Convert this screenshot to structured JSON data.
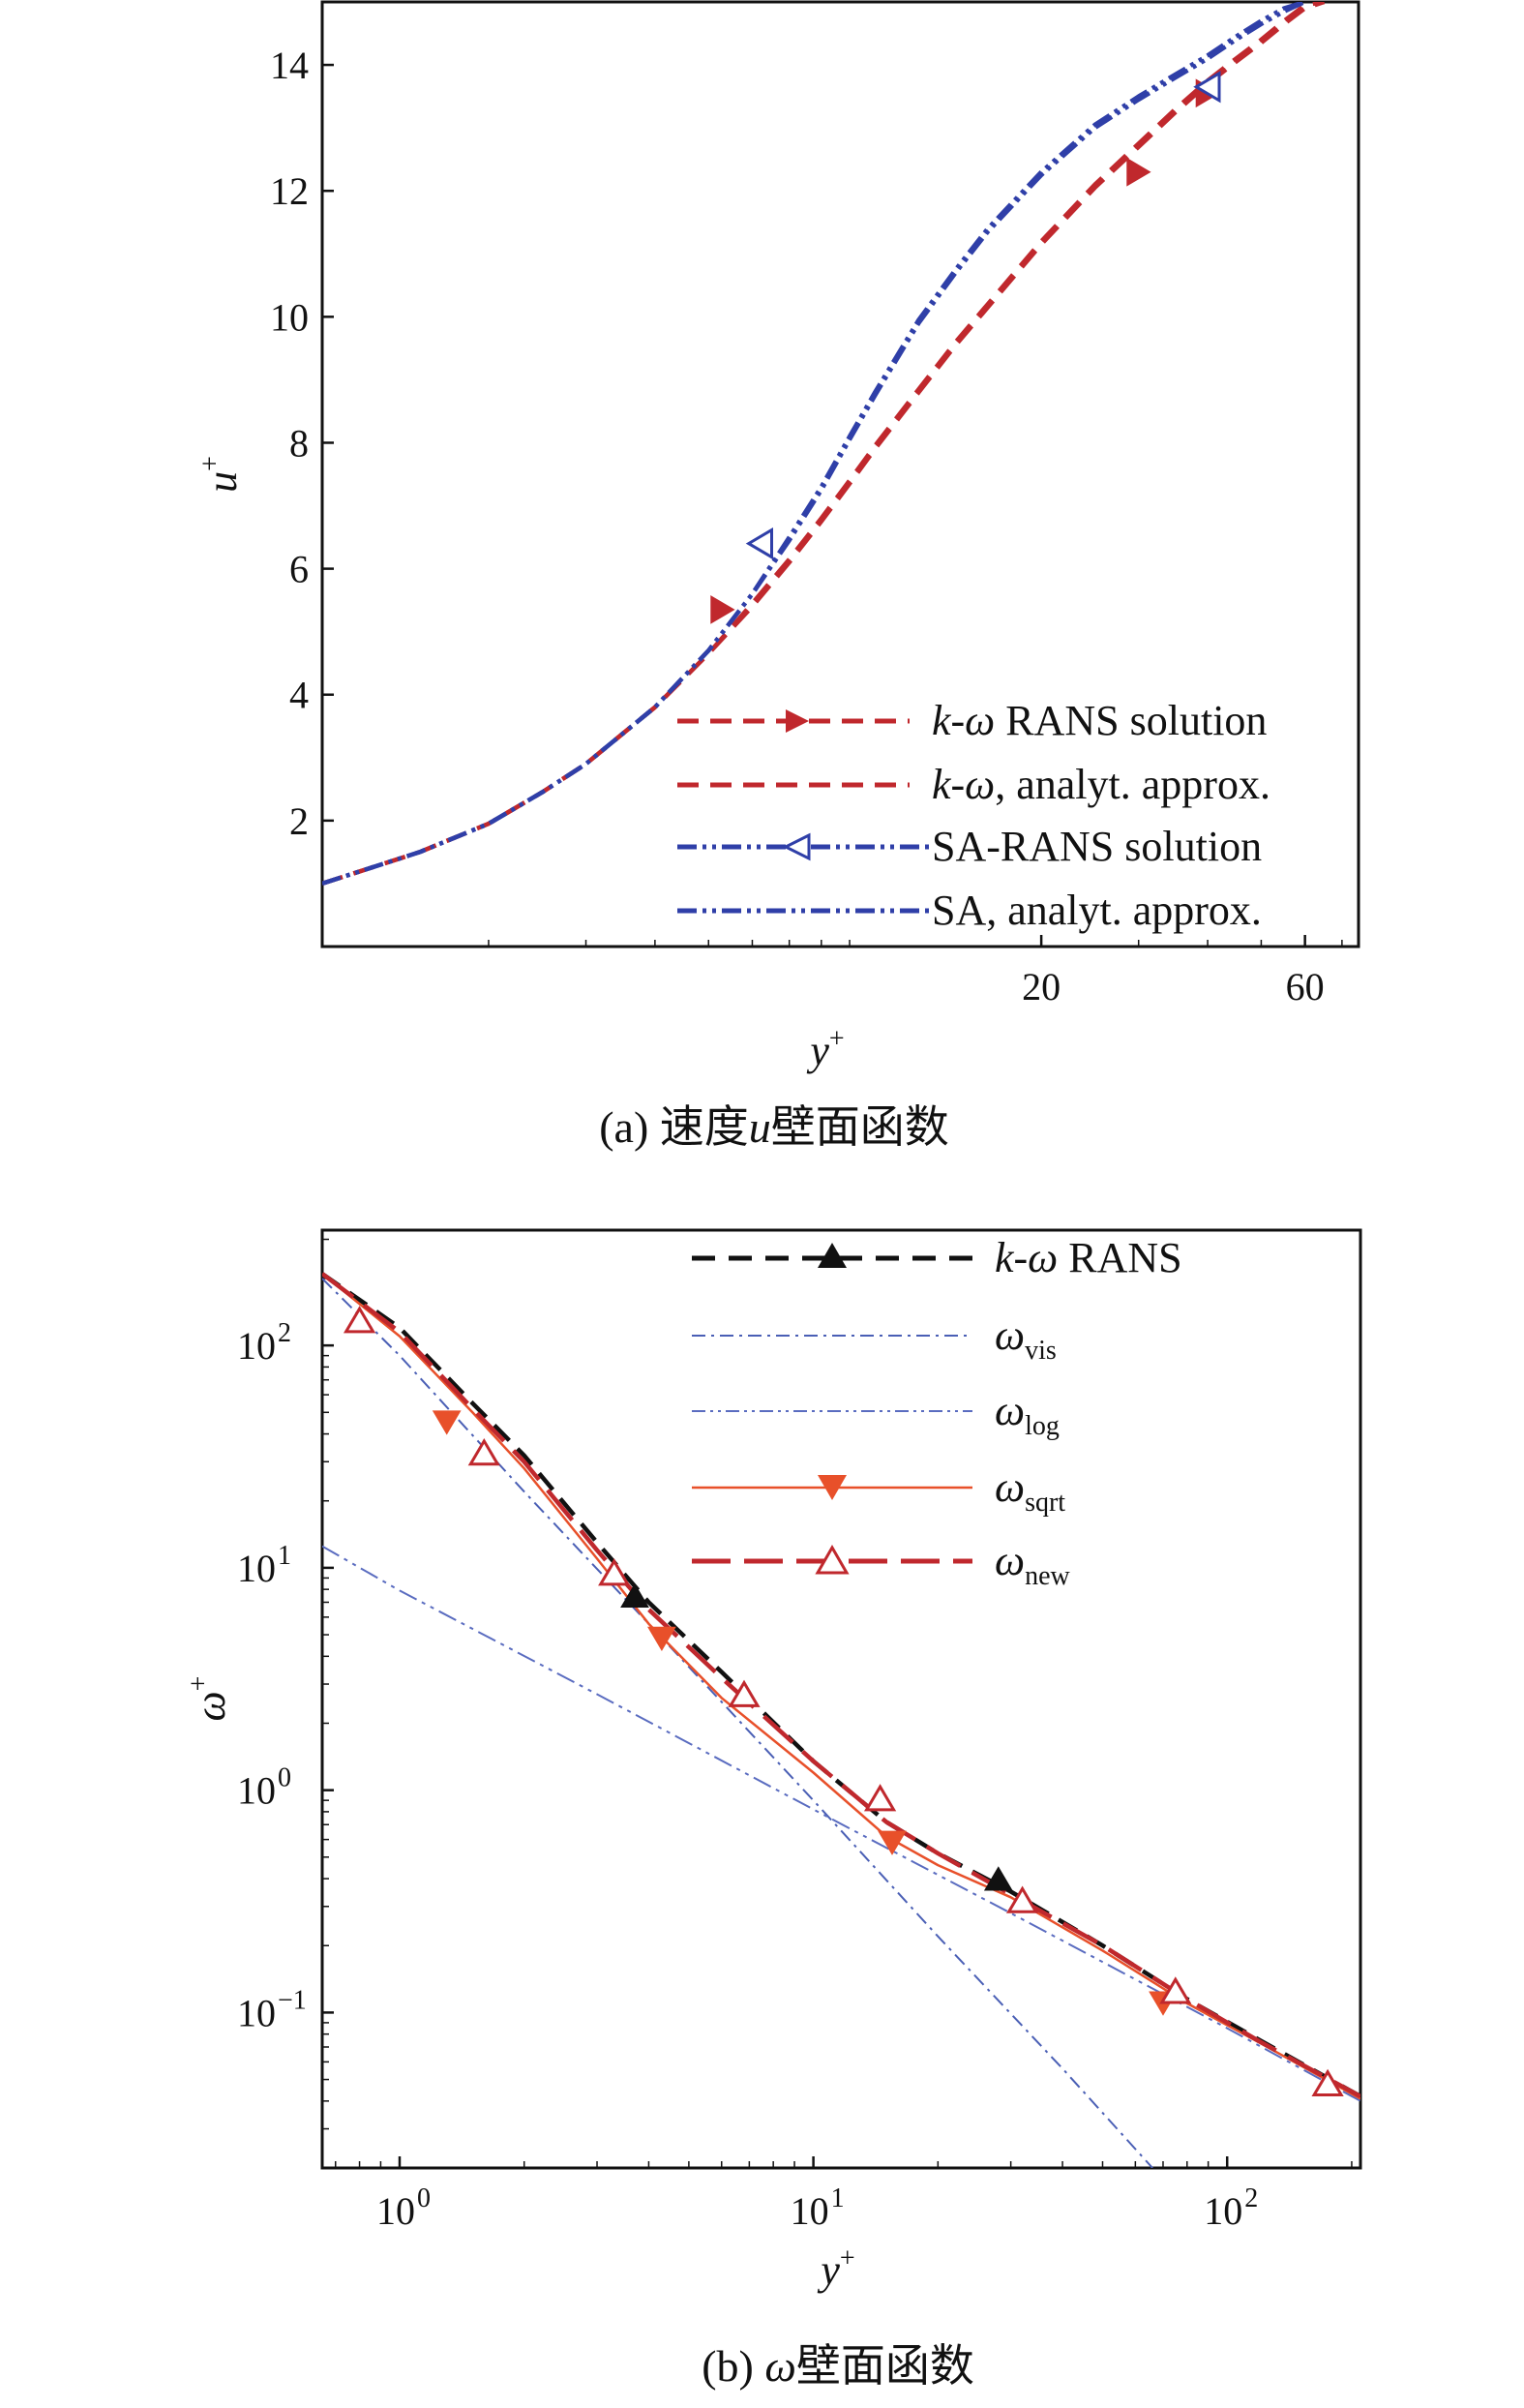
{
  "colors": {
    "kw_red": "#c0282d",
    "sa_blue": "#2f3fa8",
    "black": "#111111",
    "omega_vis_blue": "#4a5fb5",
    "omega_log_blue": "#5a6cc0",
    "omega_sqrt_orange": "#e8502a",
    "omega_new_red": "#c0282d"
  },
  "chart_data": [
    {
      "id": "a",
      "type": "line",
      "caption_prefix": "(a) ",
      "caption_var": "u",
      "caption_suffix": "壁面函数",
      "caption_full": "(a) 速度u壁面函数",
      "caption_text": "速度",
      "xlabel": "y",
      "xlabel_sup": "+",
      "ylabel": "u",
      "ylabel_sup": "+",
      "xscale": "log",
      "xlim": [
        1,
        75
      ],
      "ylim": [
        0,
        15
      ],
      "xticks": [
        20,
        60
      ],
      "xtick_labels": [
        "20",
        "60"
      ],
      "yticks": [
        2,
        4,
        6,
        8,
        10,
        12,
        14
      ],
      "ytick_labels": [
        "2",
        "4",
        "6",
        "8",
        "10",
        "12",
        "14"
      ],
      "grid": false,
      "legend_position": "bottom-right",
      "series": [
        {
          "name": "k-ω RANS solution",
          "legend_italic": "k-ω",
          "legend_rest": " RANS solution",
          "style": "dashed",
          "marker": "filled-triangle-right",
          "color": "#c0282d",
          "x": [
            1.0,
            1.5,
            2.0,
            2.5,
            3.0,
            4.0,
            5.0,
            6.0,
            7.0,
            8.0,
            9.0,
            10.0,
            12.0,
            14.0,
            16.0,
            20.0,
            25.0,
            30.0,
            35.0,
            40.0,
            45.0,
            50.0,
            55.0,
            60.0,
            65.0
          ],
          "y": [
            1.0,
            1.5,
            1.95,
            2.45,
            2.9,
            3.8,
            4.65,
            5.45,
            6.15,
            6.8,
            7.4,
            7.95,
            8.85,
            9.6,
            10.2,
            11.2,
            12.1,
            12.75,
            13.3,
            13.75,
            14.1,
            14.4,
            14.7,
            14.95,
            15.0
          ],
          "marker_x": [
            5.3,
            30.0,
            40.0
          ],
          "marker_y": [
            5.35,
            12.3,
            13.55
          ]
        },
        {
          "name": "k-ω, analyt. approx.",
          "legend_italic": "k-ω",
          "legend_rest": ", analyt. approx.",
          "style": "dashed",
          "marker": "none",
          "color": "#c0282d",
          "x": [
            1.0,
            1.5,
            2.0,
            2.5,
            3.0,
            4.0,
            5.0,
            6.0,
            7.0,
            8.0,
            9.0,
            10.0,
            12.0,
            14.0,
            16.0,
            20.0,
            25.0,
            30.0,
            35.0,
            40.0,
            45.0,
            50.0,
            55.0,
            60.0,
            65.0
          ],
          "y": [
            1.0,
            1.5,
            1.95,
            2.45,
            2.9,
            3.8,
            4.65,
            5.4,
            6.1,
            6.75,
            7.35,
            7.9,
            8.8,
            9.55,
            10.15,
            11.15,
            12.05,
            12.7,
            13.25,
            13.7,
            14.05,
            14.35,
            14.65,
            14.9,
            15.0
          ]
        },
        {
          "name": "SA-RANS solution",
          "legend_italic": "",
          "legend_rest": "SA-RANS solution",
          "style": "dash-dot-dot",
          "marker": "open-triangle-left",
          "color": "#2f3fa8",
          "x": [
            1.0,
            1.5,
            2.0,
            2.5,
            3.0,
            4.0,
            5.0,
            6.0,
            7.0,
            8.0,
            9.0,
            10.0,
            12.0,
            14.0,
            16.0,
            20.0,
            25.0,
            30.0,
            35.0,
            40.0,
            45.0,
            50.0,
            55.0,
            60.0
          ],
          "y": [
            1.0,
            1.5,
            1.95,
            2.45,
            2.9,
            3.8,
            4.7,
            5.6,
            6.5,
            7.3,
            8.1,
            8.8,
            9.95,
            10.75,
            11.4,
            12.3,
            13.05,
            13.5,
            13.85,
            14.15,
            14.45,
            14.7,
            14.9,
            15.0
          ],
          "marker_x": [
            6.2,
            40.0
          ],
          "marker_y": [
            6.4,
            13.65
          ]
        },
        {
          "name": "SA, analyt. approx.",
          "legend_italic": "",
          "legend_rest": "SA, analyt. approx.",
          "style": "dash-dot-dot",
          "marker": "none",
          "color": "#2f3fa8",
          "x": [
            1.0,
            1.5,
            2.0,
            2.5,
            3.0,
            4.0,
            5.0,
            6.0,
            7.0,
            8.0,
            9.0,
            10.0,
            12.0,
            14.0,
            16.0,
            20.0,
            25.0,
            30.0,
            35.0,
            40.0,
            45.0,
            50.0,
            55.0,
            60.0
          ],
          "y": [
            1.0,
            1.5,
            1.95,
            2.45,
            2.9,
            3.8,
            4.7,
            5.6,
            6.45,
            7.25,
            8.05,
            8.75,
            9.9,
            10.7,
            11.35,
            12.25,
            13.0,
            13.45,
            13.8,
            14.1,
            14.4,
            14.65,
            14.85,
            15.0
          ]
        }
      ]
    },
    {
      "id": "b",
      "type": "line",
      "caption_prefix": "(b) ",
      "caption_var": "ω",
      "caption_suffix": "壁面函数",
      "caption_full": "(b) ω壁面函数",
      "xlabel": "y",
      "xlabel_sup": "+",
      "ylabel": "ω",
      "ylabel_sup": "+",
      "xscale": "log",
      "yscale": "log",
      "xlim": [
        0.65,
        210
      ],
      "ylim": [
        0.02,
        330
      ],
      "xticks": [
        1,
        10,
        100
      ],
      "xtick_base": [
        "10",
        "10",
        "10"
      ],
      "xtick_exp": [
        "0",
        "1",
        "2"
      ],
      "yticks": [
        0.1,
        1,
        10,
        100
      ],
      "ytick_base": [
        "10",
        "10",
        "10",
        "10"
      ],
      "ytick_exp": [
        "−1",
        "0",
        "1",
        "2"
      ],
      "grid": false,
      "legend_position": "top-right",
      "series": [
        {
          "name": "k-ω RANS",
          "legend_italic": "k-ω",
          "legend_rest": " RANS",
          "style": "dashed",
          "marker": "filled-triangle-up",
          "color": "#111111",
          "x": [
            0.65,
            1.0,
            1.5,
            2.0,
            3.0,
            4.0,
            6.0,
            10.0,
            15.0,
            20.0,
            30.0,
            50.0,
            80.0,
            120.0,
            210.0
          ],
          "y": [
            210,
            120,
            55,
            32,
            13,
            7.0,
            3.4,
            1.35,
            0.72,
            0.52,
            0.35,
            0.2,
            0.115,
            0.075,
            0.042
          ],
          "marker_x": [
            3.7,
            28.0
          ],
          "marker_y": [
            7.5,
            0.4
          ]
        },
        {
          "name": "ω_vis",
          "legend_sym": "ω",
          "legend_sub": "vis",
          "style": "dash-dot",
          "marker": "none",
          "color": "#4a5fb5",
          "x": [
            0.65,
            1.0,
            2.0,
            4.0,
            10.0,
            20.0,
            40.0,
            66.0
          ],
          "y": [
            200,
            90,
            22,
            5.6,
            0.9,
            0.22,
            0.056,
            0.02
          ]
        },
        {
          "name": "ω_log",
          "legend_sym": "ω",
          "legend_sub": "log",
          "style": "dash-dot-dot",
          "marker": "none",
          "color": "#5a6cc0",
          "x": [
            0.65,
            1.0,
            3.0,
            10.0,
            30.0,
            100.0,
            210.0
          ],
          "y": [
            12.5,
            7.9,
            2.7,
            0.82,
            0.28,
            0.085,
            0.04
          ]
        },
        {
          "name": "ω_sqrt",
          "legend_sym": "ω",
          "legend_sub": "sqrt",
          "style": "solid",
          "marker": "filled-triangle-down",
          "color": "#e8502a",
          "x": [
            0.65,
            1.0,
            1.5,
            2.0,
            3.0,
            4.0,
            6.0,
            10.0,
            15.0,
            20.0,
            30.0,
            50.0,
            80.0,
            120.0,
            210.0
          ],
          "y": [
            210,
            110,
            50,
            28,
            11,
            5.6,
            2.6,
            1.2,
            0.62,
            0.46,
            0.33,
            0.19,
            0.11,
            0.073,
            0.041
          ],
          "marker_x": [
            1.3,
            4.3,
            15.5,
            70.0
          ],
          "marker_y": [
            45,
            4.8,
            0.58,
            0.11
          ]
        },
        {
          "name": "ω_new",
          "legend_sym": "ω",
          "legend_sub": "new",
          "style": "long-dash",
          "marker": "open-triangle-up",
          "color": "#c0282d",
          "x": [
            0.65,
            1.0,
            1.5,
            2.0,
            3.0,
            4.0,
            6.0,
            10.0,
            15.0,
            20.0,
            30.0,
            50.0,
            80.0,
            120.0,
            210.0
          ],
          "y": [
            210,
            115,
            52,
            30,
            12,
            6.5,
            3.2,
            1.35,
            0.72,
            0.52,
            0.34,
            0.2,
            0.115,
            0.074,
            0.042
          ],
          "marker_x": [
            0.8,
            1.6,
            3.3,
            6.8,
            14.5,
            32.0,
            75.0,
            175.0
          ],
          "marker_y": [
            130,
            33,
            9.5,
            2.7,
            0.92,
            0.32,
            0.125,
            0.048
          ]
        }
      ]
    }
  ]
}
